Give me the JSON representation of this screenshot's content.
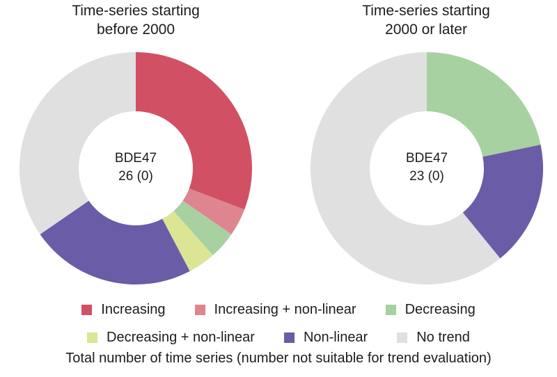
{
  "caption": "Total number of time series (number not suitable for trend evaluation)",
  "legend": {
    "items": [
      {
        "label": "Increasing",
        "color": "#d25064"
      },
      {
        "label": "Increasing + non-linear",
        "color": "#de8590"
      },
      {
        "label": "Decreasing",
        "color": "#a7d1a0"
      },
      {
        "label": "Decreasing + non-linear",
        "color": "#dbe594"
      },
      {
        "label": "Non-linear",
        "color": "#6a5ca7"
      },
      {
        "label": "No trend",
        "color": "#e0e0e1"
      }
    ],
    "rows": [
      [
        0,
        1,
        2
      ],
      [
        3,
        4,
        5
      ]
    ],
    "position": "bottom"
  },
  "chart_data": [
    {
      "type": "pie",
      "subtype": "donut",
      "title": "Time-series starting before 2000",
      "title_lines": [
        "Time-series starting",
        "before 2000"
      ],
      "center_text": [
        "BDE47",
        "26 (0)"
      ],
      "compound": "BDE47",
      "total_time_series": 26,
      "not_suitable_for_trend": 0,
      "categories": [
        "Increasing",
        "Increasing + non-linear",
        "Decreasing",
        "Decreasing + non-linear",
        "Non-linear",
        "No trend"
      ],
      "values": [
        8,
        1,
        1,
        1,
        6,
        9
      ],
      "start_angle": "top",
      "direction": "clockwise",
      "inner_radius_ratio": 0.49
    },
    {
      "type": "pie",
      "subtype": "donut",
      "title": "Time-series starting 2000 or later",
      "title_lines": [
        "Time-series starting",
        "2000 or later"
      ],
      "center_text": [
        "BDE47",
        "23 (0)"
      ],
      "compound": "BDE47",
      "total_time_series": 23,
      "not_suitable_for_trend": 0,
      "categories": [
        "Increasing",
        "Increasing + non-linear",
        "Decreasing",
        "Decreasing + non-linear",
        "Non-linear",
        "No trend"
      ],
      "values": [
        0,
        0,
        5,
        0,
        4,
        14
      ],
      "start_angle": "top",
      "direction": "clockwise",
      "inner_radius_ratio": 0.49
    }
  ],
  "colors": {
    "background": "#ffffff",
    "text": "#1c1c1c"
  }
}
